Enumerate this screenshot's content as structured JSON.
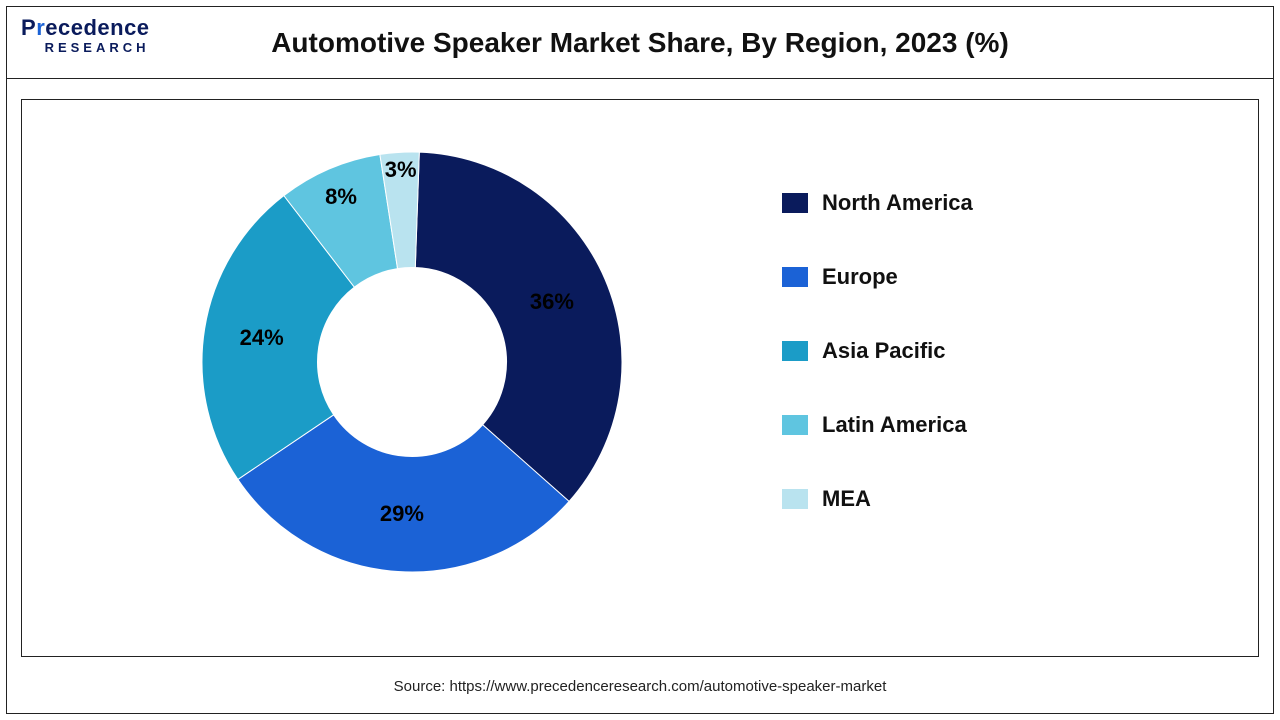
{
  "logo": {
    "main_pre": "P",
    "main_alt": "r",
    "main_post": "ecedence",
    "sub": "RESEARCH"
  },
  "chart": {
    "type": "donut",
    "title": "Automotive Speaker Market Share, By Region, 2023 (%)",
    "background_color": "#ffffff",
    "border_color": "#222222",
    "inner_radius_ratio": 0.45,
    "outer_radius": 210,
    "start_angle_deg": 2,
    "label_fontsize": 22,
    "label_fontweight": 700,
    "label_color": "#000000",
    "title_fontsize": 28,
    "title_fontweight": 700,
    "title_color": "#111111",
    "slices": [
      {
        "name": "North America",
        "value": 36,
        "label": "36%",
        "color": "#0a1b5c"
      },
      {
        "name": "Europe",
        "value": 29,
        "label": "29%",
        "color": "#1b62d6"
      },
      {
        "name": "Asia Pacific",
        "value": 24,
        "label": "24%",
        "color": "#1b9cc7"
      },
      {
        "name": "Latin America",
        "value": 8,
        "label": "8%",
        "color": "#5fc5e0"
      },
      {
        "name": "MEA",
        "value": 3,
        "label": "3%",
        "color": "#b9e3ef"
      }
    ],
    "legend": {
      "position": "right",
      "fontsize": 22,
      "fontweight": 700,
      "color": "#111111",
      "swatch_w": 26,
      "swatch_h": 20,
      "gap": 48,
      "items": [
        {
          "label": "North America",
          "color": "#0a1b5c"
        },
        {
          "label": "Europe",
          "color": "#1b62d6"
        },
        {
          "label": "Asia Pacific",
          "color": "#1b9cc7"
        },
        {
          "label": "Latin America",
          "color": "#5fc5e0"
        },
        {
          "label": "MEA",
          "color": "#b9e3ef"
        }
      ]
    }
  },
  "source": "Source: https://www.precedenceresearch.com/automotive-speaker-market"
}
